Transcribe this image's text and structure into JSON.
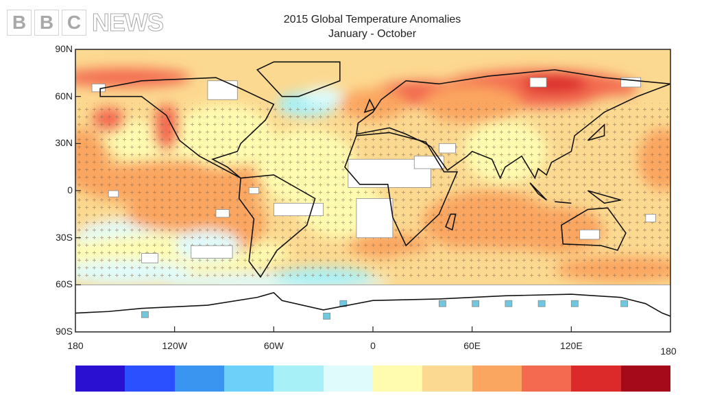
{
  "title": "2015 Global Temperature Anomalies",
  "subtitle": "January - October",
  "y_labels": [
    "90N",
    "60N",
    "30N",
    "0",
    "30S",
    "60S",
    "90S"
  ],
  "x_labels": [
    "180",
    "120W",
    "60W",
    "0",
    "60E",
    "120E",
    "180"
  ],
  "colorbar": {
    "colors": [
      "#2a10d0",
      "#2a50ff",
      "#3a95f0",
      "#6dd0f8",
      "#a8f0f8",
      "#e0fbfb",
      "#fffcb0",
      "#fcd990",
      "#fba660",
      "#f36a50",
      "#dc2a2a",
      "#a50a1a"
    ]
  },
  "map": {
    "background_color": "#fcd990",
    "missing_data_color": "#ffffff",
    "stipple_symbol": "+"
  },
  "logo": {
    "letters": [
      "B",
      "B",
      "C"
    ],
    "word": "NEWS"
  }
}
